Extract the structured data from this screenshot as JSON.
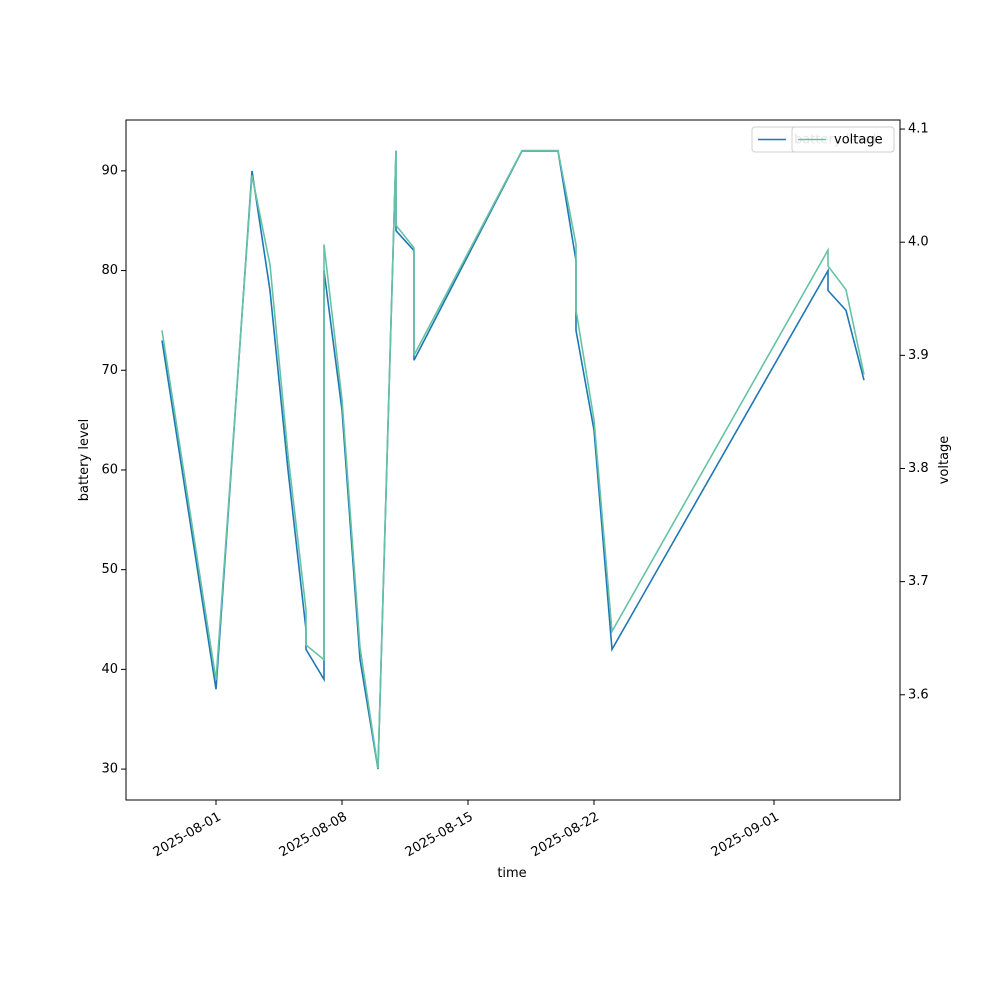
{
  "chart_data": {
    "type": "line",
    "x_label": "time",
    "y_label": "battery level",
    "y2_label": "voltage",
    "x": [
      "2025-07-29",
      "2025-08-01",
      "2025-08-03",
      "2025-08-04",
      "2025-08-05",
      "2025-08-06",
      "2025-08-06",
      "2025-08-07",
      "2025-08-07",
      "2025-08-08",
      "2025-08-09",
      "2025-08-10",
      "2025-08-11",
      "2025-08-11",
      "2025-08-12",
      "2025-08-12",
      "2025-08-18",
      "2025-08-20",
      "2025-08-21",
      "2025-08-21",
      "2025-08-22",
      "2025-08-23",
      "2025-09-04",
      "2025-09-04",
      "2025-09-05",
      "2025-09-06"
    ],
    "series": [
      {
        "name": "battery level",
        "color": "#1f77b4",
        "axis": "y",
        "values": [
          73,
          38,
          90,
          78,
          60,
          44,
          42,
          39,
          80,
          66,
          41,
          30,
          92,
          84,
          82,
          71,
          92,
          92,
          81,
          74,
          64,
          42,
          80,
          78,
          76,
          69
        ]
      },
      {
        "name": "voltage",
        "color": "#66c2a5",
        "axis": "y2",
        "values": [
          3.922,
          3.613,
          4.059,
          3.98,
          3.812,
          3.675,
          3.644,
          3.631,
          3.998,
          3.861,
          3.642,
          3.535,
          4.081,
          4.015,
          3.995,
          3.9,
          4.081,
          4.081,
          3.998,
          3.94,
          3.843,
          3.656,
          3.993,
          3.979,
          3.958,
          3.883
        ]
      }
    ],
    "xlim": [
      "2025-07-27",
      "2025-09-08"
    ],
    "xticks": [
      "2025-08-01",
      "2025-08-08",
      "2025-08-15",
      "2025-08-22",
      "2025-09-01"
    ],
    "ylim": [
      26.9,
      95.1
    ],
    "yticks": [
      30,
      40,
      50,
      60,
      70,
      80,
      90
    ],
    "y2lim": [
      3.507,
      4.108
    ],
    "y2ticks": [
      3.6,
      3.7,
      3.8,
      3.9,
      {
        "value": 4,
        "label": "4.0"
      },
      4.1
    ],
    "legend": "upper right"
  }
}
